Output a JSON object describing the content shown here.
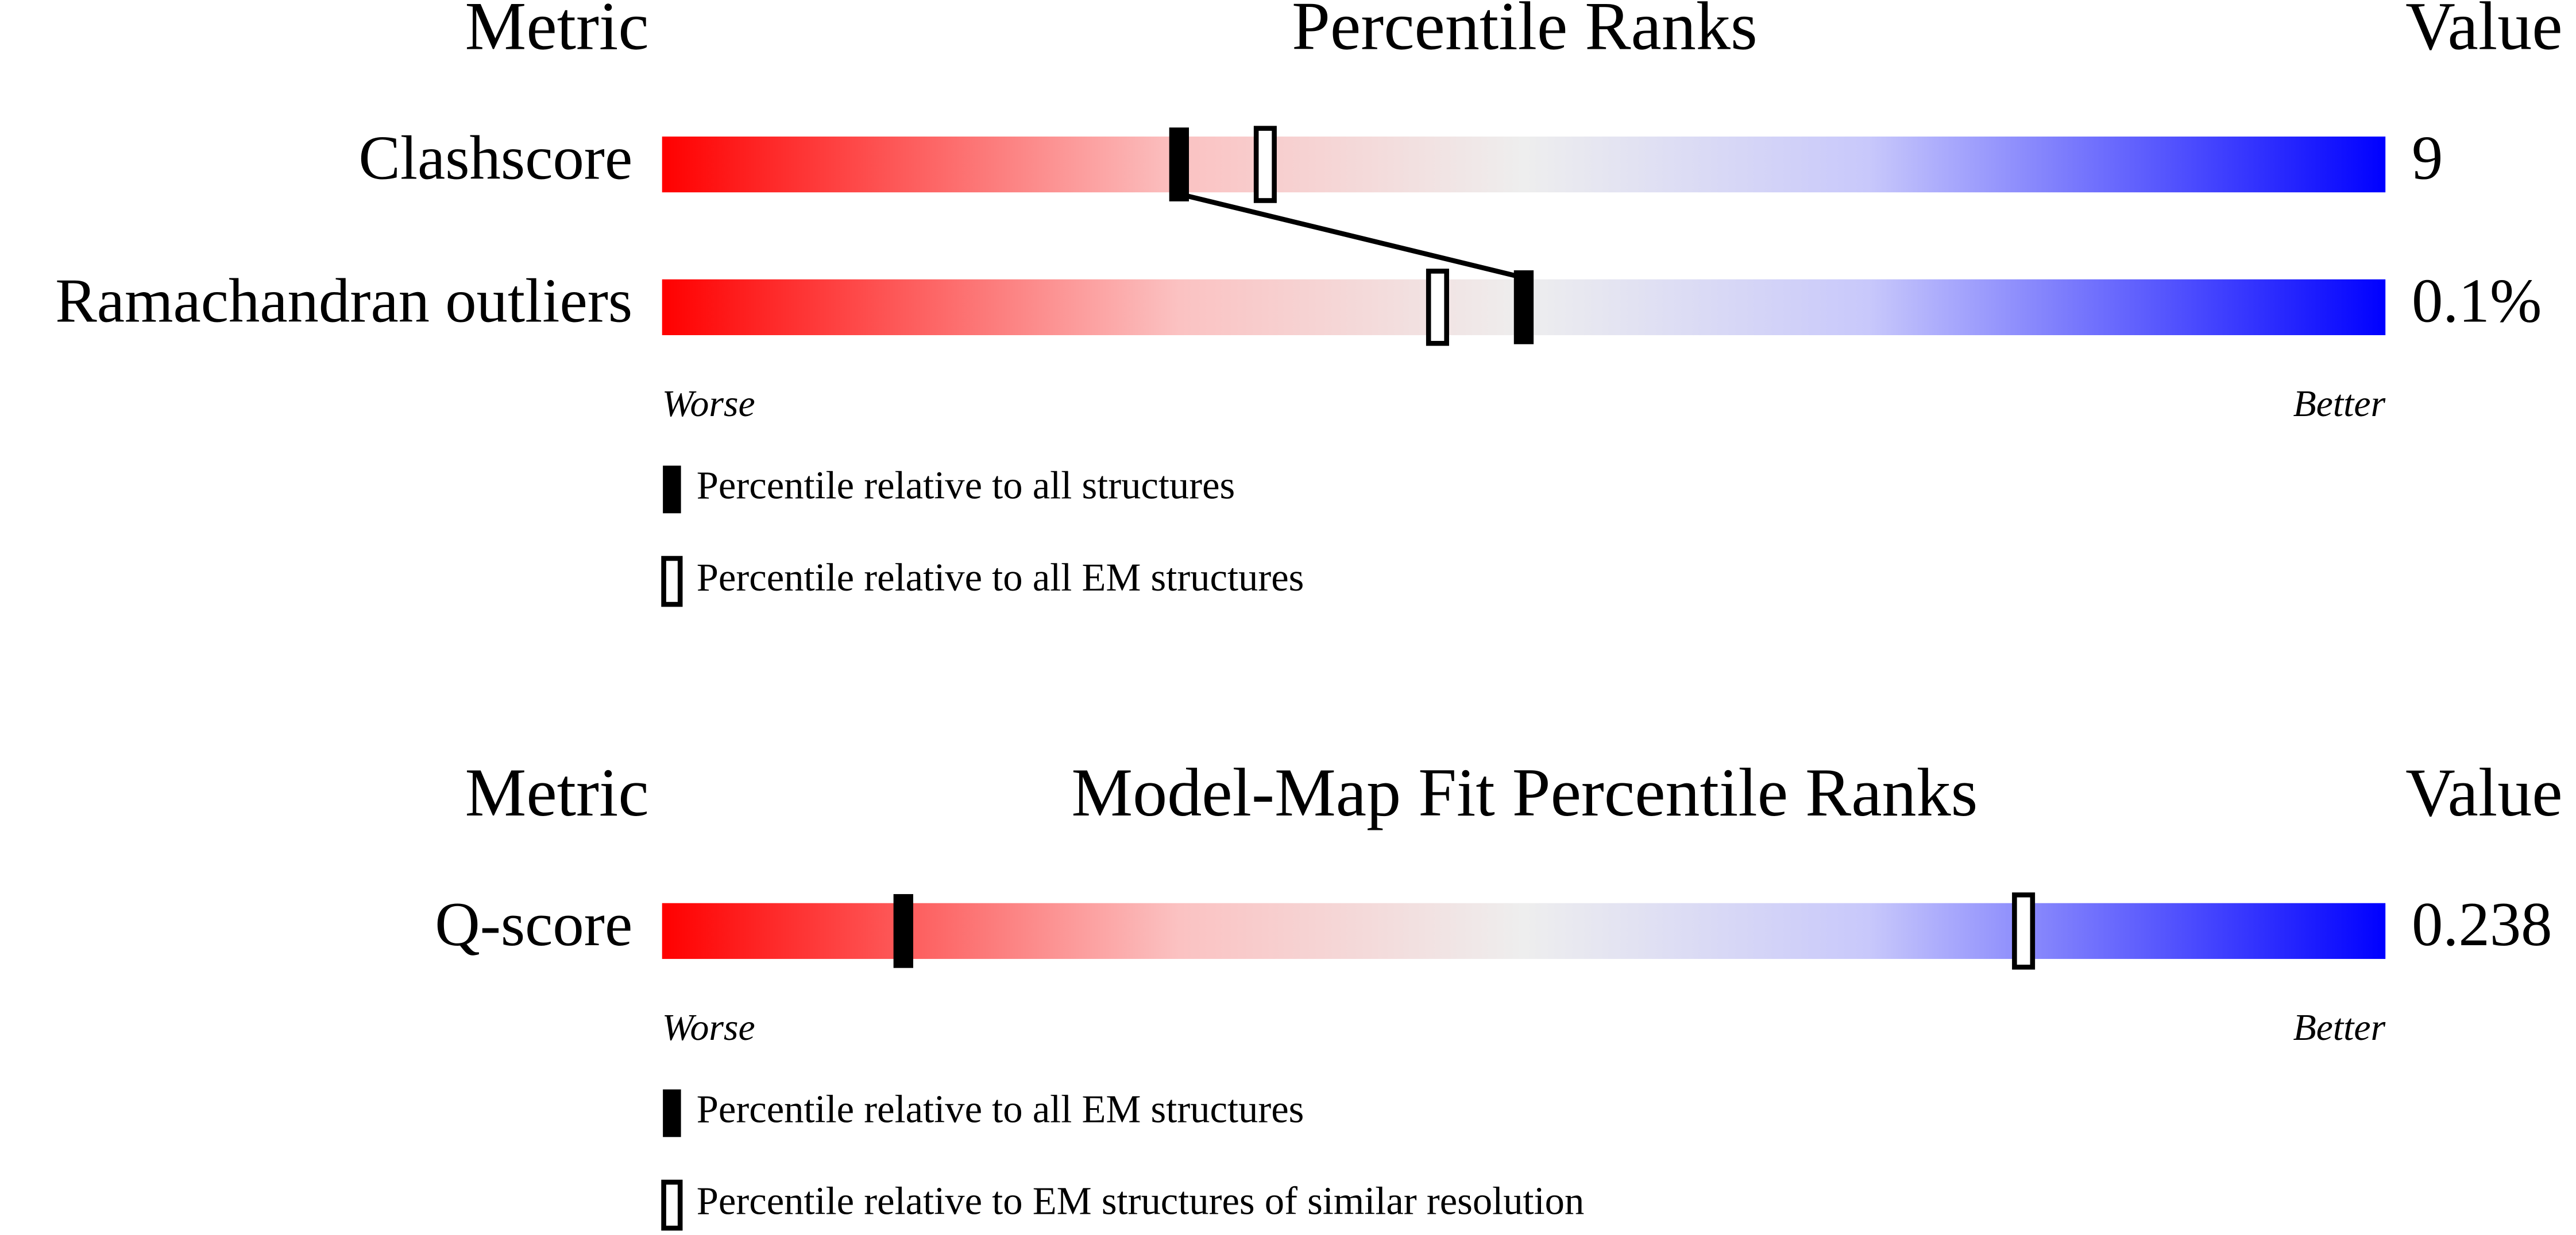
{
  "chart_data": [
    {
      "type": "percentile-slider",
      "header": {
        "metric": "Metric",
        "title": "Percentile Ranks",
        "value": "Value"
      },
      "categories": [
        "Clashscore",
        "Ramachandran outliers"
      ],
      "value_labels": [
        "9",
        "0.1%"
      ],
      "xlim": [
        0,
        100
      ],
      "scale_labels": [
        "Worse",
        "Better"
      ],
      "connect_filled": true,
      "series": [
        {
          "name": "Percentile relative to all structures",
          "style": "filled",
          "color": "#000000",
          "values": [
            30,
            50
          ]
        },
        {
          "name": "Percentile relative to all EM structures",
          "style": "open",
          "color": "#000000",
          "values": [
            35,
            45
          ]
        }
      ]
    },
    {
      "type": "percentile-slider",
      "header": {
        "metric": "Metric",
        "title": "Model-Map Fit Percentile Ranks",
        "value": "Value"
      },
      "categories": [
        "Q-score"
      ],
      "value_labels": [
        "0.238"
      ],
      "xlim": [
        0,
        100
      ],
      "scale_labels": [
        "Worse",
        "Better"
      ],
      "connect_filled": false,
      "series": [
        {
          "name": "Percentile relative to all EM structures",
          "style": "filled",
          "color": "#000000",
          "values": [
            14
          ]
        },
        {
          "name": "Percentile relative to EM structures of similar resolution",
          "style": "open",
          "color": "#000000",
          "values": [
            79
          ]
        }
      ]
    }
  ]
}
